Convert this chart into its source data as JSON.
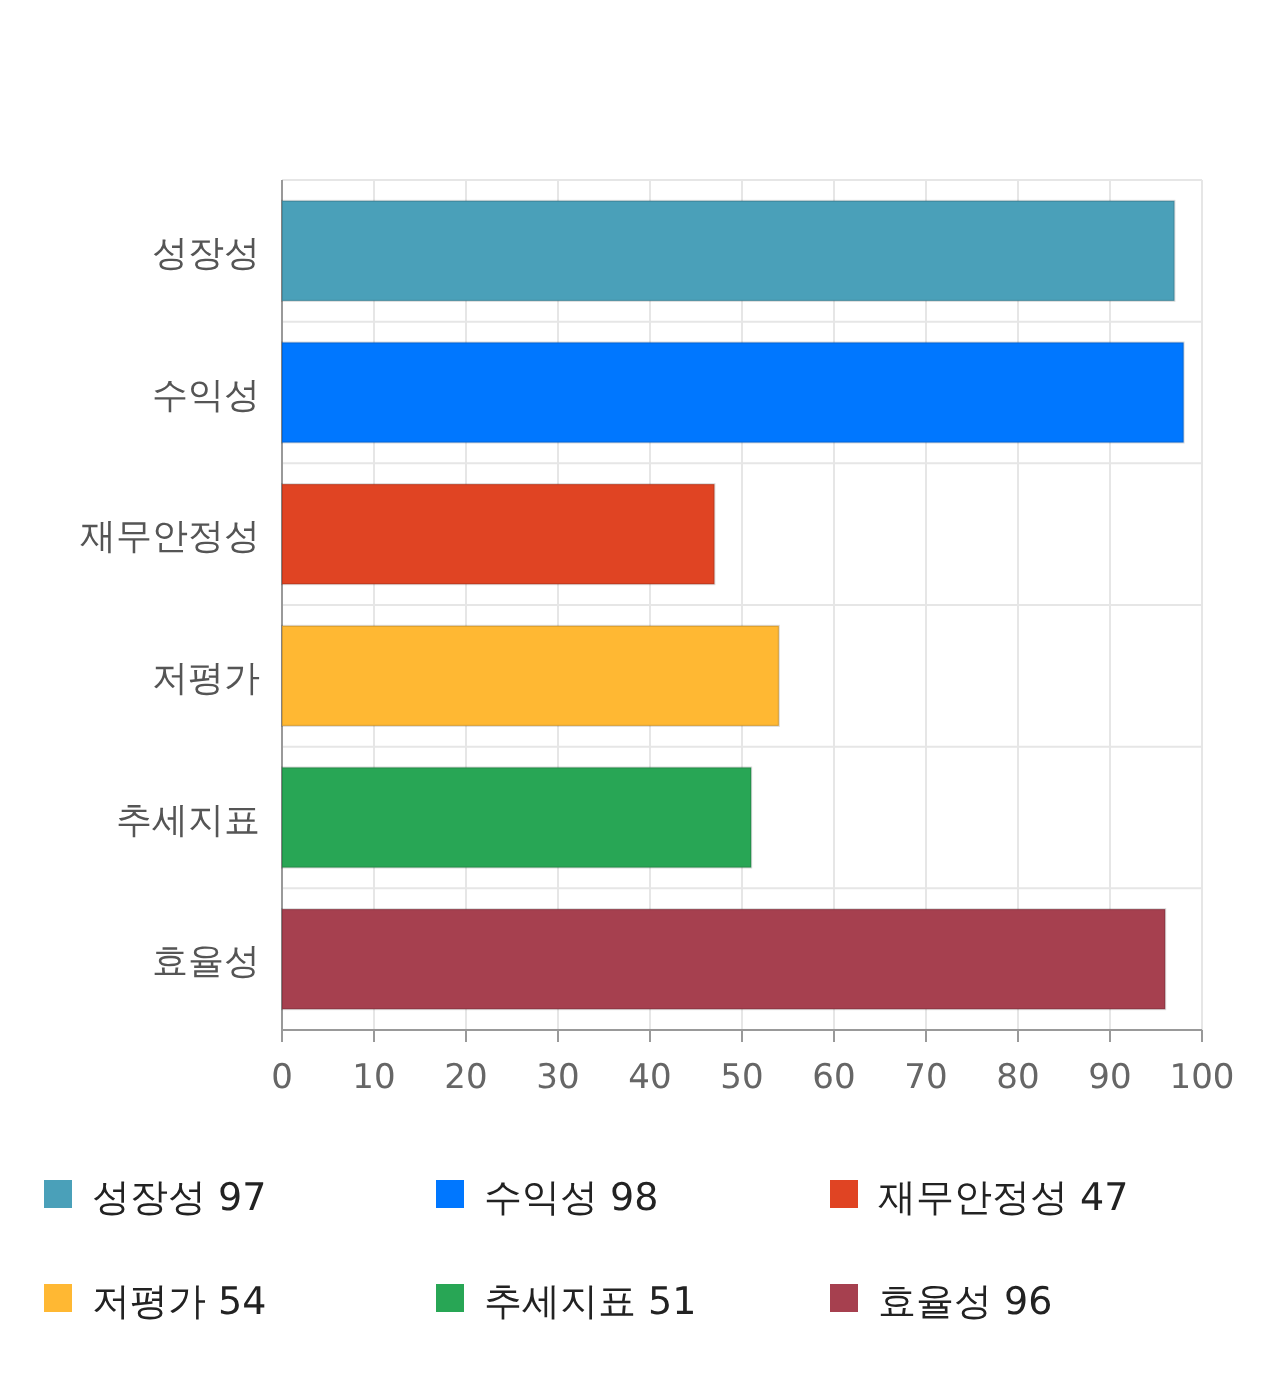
{
  "chart_data": {
    "type": "bar",
    "orientation": "horizontal",
    "stacked": true,
    "categories": [
      "성장성",
      "수익성",
      "재무안정성",
      "저평가",
      "추세지표",
      "효율성"
    ],
    "series": [
      {
        "name": "성장성 97",
        "color": "#4aa0b9",
        "values": [
          97,
          null,
          null,
          null,
          null,
          null
        ]
      },
      {
        "name": "수익성 98",
        "color": "#0077ff",
        "values": [
          null,
          98,
          null,
          null,
          null,
          null
        ]
      },
      {
        "name": "재무안정성 47",
        "color": "#e04423",
        "values": [
          null,
          null,
          47,
          null,
          null,
          null
        ]
      },
      {
        "name": "저평가 54",
        "color": "#ffb833",
        "values": [
          null,
          null,
          null,
          54,
          null,
          null
        ]
      },
      {
        "name": "추세지표 51",
        "color": "#28a655",
        "values": [
          null,
          null,
          null,
          null,
          51,
          null
        ]
      },
      {
        "name": "효율성 96",
        "color": "#a6404f",
        "values": [
          null,
          null,
          null,
          null,
          null,
          96
        ]
      }
    ],
    "xlim": [
      0,
      100
    ],
    "xticks": [
      0,
      10,
      20,
      30,
      40,
      50,
      60,
      70,
      80,
      90,
      100
    ],
    "grid": true,
    "legend": "bottom"
  }
}
